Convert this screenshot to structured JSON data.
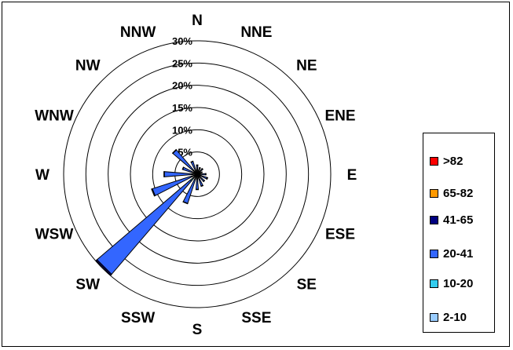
{
  "chart_data": {
    "type": "wind-rose",
    "directions": [
      "N",
      "NNE",
      "NE",
      "ENE",
      "E",
      "ESE",
      "SE",
      "SSE",
      "S",
      "SSW",
      "SW",
      "WSW",
      "W",
      "WNW",
      "NW",
      "NNW"
    ],
    "ring_labels": [
      "5%",
      "10%",
      "15%",
      "20%",
      "25%",
      "30%"
    ],
    "ring_values": [
      5,
      10,
      15,
      20,
      25,
      30
    ],
    "rmax": 30,
    "series": [
      {
        "name": "2-10",
        "color": "#99ccff"
      },
      {
        "name": "10-20",
        "color": "#33ccee"
      },
      {
        "name": "20-41",
        "color": "#3366ff"
      },
      {
        "name": "41-65",
        "color": "#000080"
      },
      {
        "name": "65-82",
        "color": "#ff9900"
      },
      {
        "name": ">82",
        "color": "#ff0000"
      }
    ],
    "petals": [
      {
        "dir": 0,
        "bands": [
          0.3,
          0.5,
          1.2,
          0.1,
          0,
          0
        ]
      },
      {
        "dir": 22.5,
        "bands": [
          0.3,
          0.4,
          0.8,
          0.1,
          0,
          0
        ]
      },
      {
        "dir": 45,
        "bands": [
          0.3,
          0.4,
          0.9,
          0.1,
          0,
          0
        ]
      },
      {
        "dir": 67.5,
        "bands": [
          0.3,
          0.3,
          0.6,
          0,
          0,
          0
        ]
      },
      {
        "dir": 90,
        "bands": [
          0.3,
          0.4,
          1.2,
          0.1,
          0,
          0
        ]
      },
      {
        "dir": 112.5,
        "bands": [
          0.3,
          0.5,
          1.5,
          0.2,
          0,
          0
        ]
      },
      {
        "dir": 135,
        "bands": [
          0.3,
          0.4,
          1.4,
          0.1,
          0,
          0
        ]
      },
      {
        "dir": 157.5,
        "bands": [
          0.3,
          0.5,
          2.0,
          0.1,
          0,
          0
        ]
      },
      {
        "dir": 180,
        "bands": [
          0.3,
          0.6,
          2.5,
          0.1,
          0,
          0
        ]
      },
      {
        "dir": 202.5,
        "bands": [
          0.4,
          0.8,
          5.7,
          0.1,
          0,
          0
        ]
      },
      {
        "dir": 225,
        "bands": [
          0.5,
          1.5,
          27.6,
          0.3,
          0,
          0
        ]
      },
      {
        "dir": 247.5,
        "bands": [
          0.4,
          0.9,
          9.3,
          0.2,
          0,
          0
        ]
      },
      {
        "dir": 270,
        "bands": [
          0.4,
          0.8,
          6.2,
          0.1,
          0,
          0
        ]
      },
      {
        "dir": 292.5,
        "bands": [
          0.3,
          0.5,
          2.6,
          0.1,
          0,
          0
        ]
      },
      {
        "dir": 315,
        "bands": [
          0.3,
          0.5,
          6.4,
          0.1,
          0,
          0
        ]
      },
      {
        "dir": 337.5,
        "bands": [
          0.3,
          0.5,
          2.2,
          0.1,
          0,
          0
        ]
      }
    ],
    "legend_position": "right",
    "legend_order": [
      ">82",
      "65-82",
      "41-65",
      "20-41",
      "10-20",
      "2-10"
    ]
  }
}
